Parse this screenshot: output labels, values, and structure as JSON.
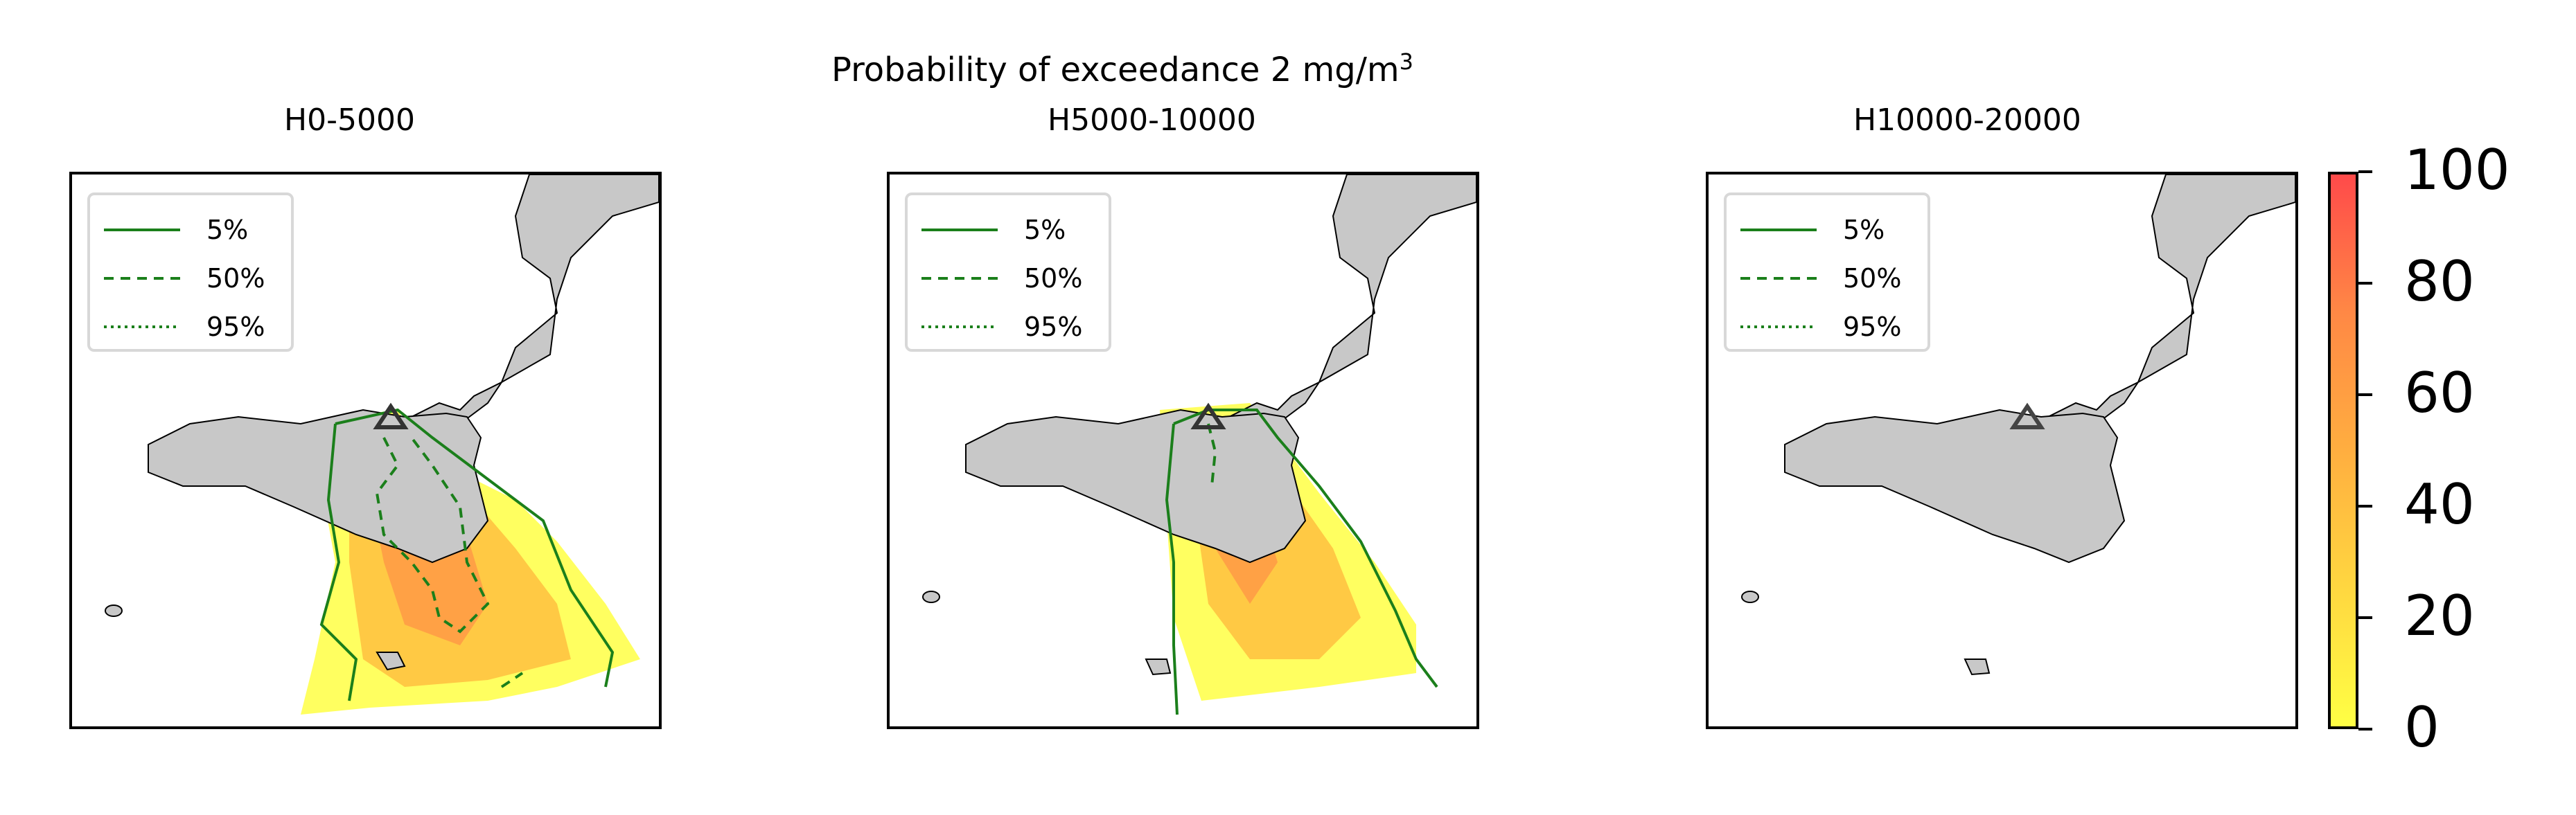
{
  "figure": {
    "suptitle_main": "Probability of exceedance 2 mg/m",
    "suptitle_sup": "3"
  },
  "panels": [
    {
      "title": "H0-5000"
    },
    {
      "title": "H5000-10000"
    },
    {
      "title": "H10000-20000"
    }
  ],
  "legend": [
    {
      "label": "5%",
      "style": "solid"
    },
    {
      "label": "50%",
      "style": "dashed"
    },
    {
      "label": "95%",
      "style": "dotted"
    }
  ],
  "colorbar": {
    "ticks": [
      "0",
      "20",
      "40",
      "60",
      "80",
      "100"
    ],
    "range": [
      0,
      100
    ],
    "colors": [
      "#ffff44",
      "#ffd740",
      "#ffae40",
      "#ff8845",
      "#ff4a4a"
    ]
  },
  "map": {
    "land_color": "#c8c8c8",
    "contour_color": "#1b7f1b",
    "vent_marker": "triangle"
  }
}
